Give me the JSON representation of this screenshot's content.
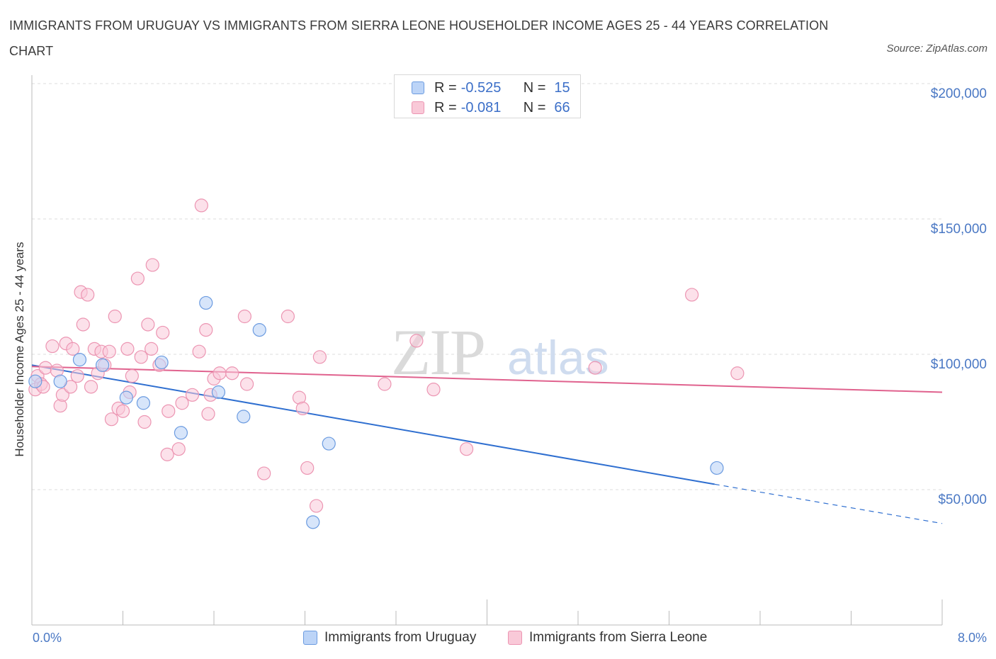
{
  "title": "IMMIGRANTS FROM URUGUAY VS IMMIGRANTS FROM SIERRA LEONE HOUSEHOLDER INCOME AGES 25 - 44 YEARS CORRELATION CHART",
  "source": "Source: ZipAtlas.com",
  "watermark": {
    "zip": "ZIP",
    "atlas": "atlas"
  },
  "legend_top": {
    "rows": [
      {
        "r_label": "R =",
        "r_value": "-0.525",
        "n_label": "N =",
        "n_value": "15"
      },
      {
        "r_label": "R =",
        "r_value": "-0.081",
        "n_label": "N =",
        "n_value": "66"
      }
    ]
  },
  "colors": {
    "uruguay_fill": "#bcd4f7",
    "uruguay_stroke": "#6b9be0",
    "uruguay_line": "#2f6fd0",
    "sierra_fill": "#f9c9d8",
    "sierra_stroke": "#ec95b2",
    "sierra_line": "#e0628e",
    "axis_text": "#4a78c4",
    "grid": "#dddddd"
  },
  "chart_data": {
    "type": "scatter",
    "title": "IMMIGRANTS FROM URUGUAY VS IMMIGRANTS FROM SIERRA LEONE HOUSEHOLDER INCOME AGES 25 - 44 YEARS CORRELATION CHART",
    "xlabel": "",
    "ylabel": "Householder Income Ages 25 - 44 years",
    "xlim": [
      0,
      8
    ],
    "ylim": [
      0,
      200000
    ],
    "x_tick_labels": [
      "0.0%",
      "8.0%"
    ],
    "y_ticks": [
      {
        "value": 50000,
        "label": "$50,000"
      },
      {
        "value": 100000,
        "label": "$100,000"
      },
      {
        "value": 150000,
        "label": "$150,000"
      },
      {
        "value": 200000,
        "label": "$200,000"
      }
    ],
    "grid": true,
    "legend_position": "bottom",
    "series": [
      {
        "name": "Immigrants from Uruguay",
        "color": "#6b9be0",
        "points": [
          {
            "x": 0.03,
            "y": 90000
          },
          {
            "x": 0.25,
            "y": 90000
          },
          {
            "x": 0.42,
            "y": 98000
          },
          {
            "x": 0.62,
            "y": 96000
          },
          {
            "x": 0.83,
            "y": 84000
          },
          {
            "x": 0.98,
            "y": 82000
          },
          {
            "x": 1.14,
            "y": 97000
          },
          {
            "x": 1.31,
            "y": 71000
          },
          {
            "x": 1.53,
            "y": 119000
          },
          {
            "x": 1.64,
            "y": 86000
          },
          {
            "x": 1.86,
            "y": 77000
          },
          {
            "x": 2.0,
            "y": 109000
          },
          {
            "x": 2.47,
            "y": 38000
          },
          {
            "x": 2.61,
            "y": 67000
          },
          {
            "x": 6.02,
            "y": 58000
          }
        ],
        "trend": {
          "x0": 0.0,
          "y0": 96000,
          "x1": 6.0,
          "y1": 52000,
          "dashed_to_x": 8.0,
          "dashed_to_y": 37500
        }
      },
      {
        "name": "Immigrants from Sierra Leone",
        "color": "#ec95b2",
        "points": [
          {
            "x": 0.03,
            "y": 87000
          },
          {
            "x": 0.05,
            "y": 92000
          },
          {
            "x": 0.08,
            "y": 89000
          },
          {
            "x": 0.12,
            "y": 95000
          },
          {
            "x": 0.18,
            "y": 103000
          },
          {
            "x": 0.22,
            "y": 94000
          },
          {
            "x": 0.25,
            "y": 81000
          },
          {
            "x": 0.27,
            "y": 85000
          },
          {
            "x": 0.3,
            "y": 104000
          },
          {
            "x": 0.34,
            "y": 88000
          },
          {
            "x": 0.36,
            "y": 102000
          },
          {
            "x": 0.4,
            "y": 92000
          },
          {
            "x": 0.43,
            "y": 123000
          },
          {
            "x": 0.45,
            "y": 111000
          },
          {
            "x": 0.49,
            "y": 122000
          },
          {
            "x": 0.52,
            "y": 88000
          },
          {
            "x": 0.55,
            "y": 102000
          },
          {
            "x": 0.58,
            "y": 93000
          },
          {
            "x": 0.61,
            "y": 101000
          },
          {
            "x": 0.64,
            "y": 96000
          },
          {
            "x": 0.68,
            "y": 101000
          },
          {
            "x": 0.7,
            "y": 76000
          },
          {
            "x": 0.73,
            "y": 114000
          },
          {
            "x": 0.76,
            "y": 80000
          },
          {
            "x": 0.8,
            "y": 79000
          },
          {
            "x": 0.84,
            "y": 102000
          },
          {
            "x": 0.86,
            "y": 86000
          },
          {
            "x": 0.88,
            "y": 92000
          },
          {
            "x": 0.93,
            "y": 128000
          },
          {
            "x": 0.96,
            "y": 99000
          },
          {
            "x": 0.99,
            "y": 75000
          },
          {
            "x": 1.02,
            "y": 111000
          },
          {
            "x": 1.05,
            "y": 102000
          },
          {
            "x": 1.06,
            "y": 133000
          },
          {
            "x": 1.12,
            "y": 96000
          },
          {
            "x": 1.15,
            "y": 108000
          },
          {
            "x": 1.19,
            "y": 63000
          },
          {
            "x": 1.2,
            "y": 79000
          },
          {
            "x": 1.29,
            "y": 65000
          },
          {
            "x": 1.32,
            "y": 82000
          },
          {
            "x": 1.41,
            "y": 85000
          },
          {
            "x": 1.47,
            "y": 101000
          },
          {
            "x": 1.49,
            "y": 155000
          },
          {
            "x": 1.53,
            "y": 109000
          },
          {
            "x": 1.55,
            "y": 78000
          },
          {
            "x": 1.57,
            "y": 85000
          },
          {
            "x": 1.6,
            "y": 91000
          },
          {
            "x": 1.65,
            "y": 93000
          },
          {
            "x": 1.76,
            "y": 93000
          },
          {
            "x": 1.87,
            "y": 114000
          },
          {
            "x": 1.89,
            "y": 89000
          },
          {
            "x": 2.04,
            "y": 56000
          },
          {
            "x": 2.25,
            "y": 114000
          },
          {
            "x": 2.35,
            "y": 84000
          },
          {
            "x": 2.38,
            "y": 80000
          },
          {
            "x": 2.42,
            "y": 58000
          },
          {
            "x": 2.5,
            "y": 44000
          },
          {
            "x": 2.53,
            "y": 99000
          },
          {
            "x": 3.1,
            "y": 89000
          },
          {
            "x": 3.38,
            "y": 105000
          },
          {
            "x": 3.53,
            "y": 87000
          },
          {
            "x": 3.82,
            "y": 65000
          },
          {
            "x": 4.95,
            "y": 95000
          },
          {
            "x": 5.8,
            "y": 122000
          },
          {
            "x": 6.2,
            "y": 93000
          },
          {
            "x": 0.1,
            "y": 88000
          }
        ],
        "trend": {
          "x0": 0.0,
          "y0": 95500,
          "x1": 8.0,
          "y1": 86000
        }
      }
    ]
  },
  "bottom_legend": {
    "uruguay_label": "Immigrants from Uruguay",
    "sierra_label": "Immigrants from Sierra Leone"
  }
}
